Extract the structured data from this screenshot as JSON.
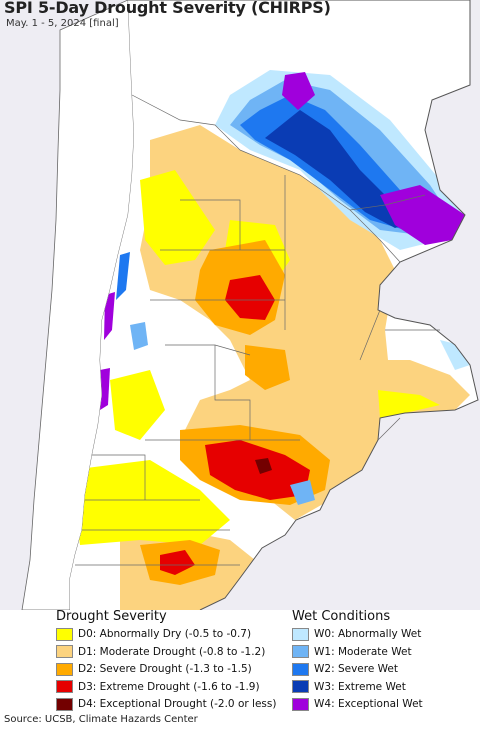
{
  "title": "SPI 5-Day Drought Severity (CHIRPS)",
  "subtitle": "May. 1 - 5, 2024 [final]",
  "legend": {
    "drought_heading": "Drought Severity",
    "wet_heading": "Wet Conditions",
    "drought": [
      {
        "label": "D0: Abnormally Dry (-0.5 to -0.7)",
        "color": "#ffff00"
      },
      {
        "label": "D1: Moderate Drought (-0.8 to -1.2)",
        "color": "#fcd37f"
      },
      {
        "label": "D2: Severe Drought (-1.3 to -1.5)",
        "color": "#ffaa00"
      },
      {
        "label": "D3: Extreme Drought (-1.6 to -1.9)",
        "color": "#e60000"
      },
      {
        "label": "D4: Exceptional Drought (-2.0 or less)",
        "color": "#730000"
      }
    ],
    "wet": [
      {
        "label": "W0: Abnormally Wet",
        "color": "#bfe8ff"
      },
      {
        "label": "W1: Moderate Wet",
        "color": "#6fb4f5"
      },
      {
        "label": "W2: Severe Wet",
        "color": "#1e78f0"
      },
      {
        "label": "W3: Extreme Wet",
        "color": "#0a3cb4"
      },
      {
        "label": "W4: Exceptional Wet",
        "color": "#a000dc"
      }
    ]
  },
  "source": "Source: UCSB, Climate Hazards Center",
  "colors": {
    "background": "#eeedf3",
    "land_neutral": "#ffffff",
    "border": "#555555"
  }
}
